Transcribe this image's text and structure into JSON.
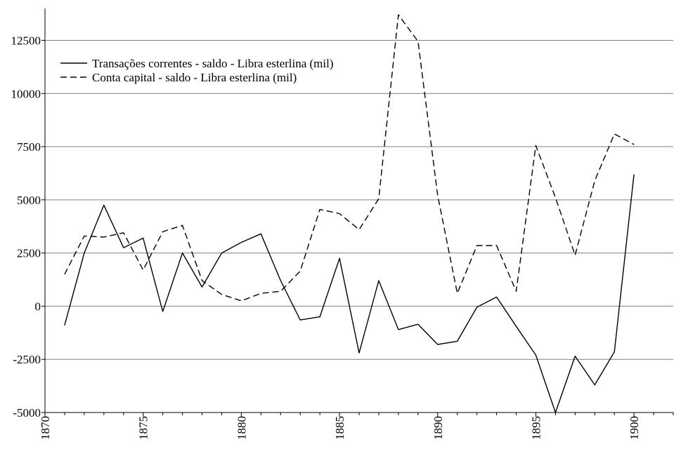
{
  "chart_data": {
    "type": "line",
    "title": "",
    "xlabel": "",
    "ylabel": "",
    "xlim": [
      1870,
      1902
    ],
    "ylim": [
      -5000,
      14000
    ],
    "x_ticks": [
      1870,
      1875,
      1880,
      1885,
      1890,
      1895,
      1900
    ],
    "y_ticks": [
      -5000,
      -2500,
      0,
      2500,
      5000,
      7500,
      10000,
      12500
    ],
    "grid": "horizontal",
    "legend_position": "top-left",
    "x": [
      1871,
      1872,
      1873,
      1874,
      1875,
      1876,
      1877,
      1878,
      1879,
      1880,
      1881,
      1882,
      1883,
      1884,
      1885,
      1886,
      1887,
      1888,
      1889,
      1890,
      1891,
      1892,
      1893,
      1894,
      1895,
      1896,
      1897,
      1898,
      1899,
      1900
    ],
    "series": [
      {
        "name": "Transações correntes - saldo - Libra esterlina (mil)",
        "style": "solid",
        "values": [
          -900,
          2500,
          4750,
          2750,
          3200,
          -250,
          2500,
          900,
          2500,
          3000,
          3400,
          1200,
          -650,
          -500,
          2250,
          -2200,
          1200,
          -1100,
          -850,
          -1800,
          -1650,
          -50,
          430,
          -950,
          -2300,
          -5000,
          -2350,
          -3700,
          -2150,
          6200
        ]
      },
      {
        "name": "Conta capital - saldo - Libra esterlina (mil)",
        "style": "dashed",
        "values": [
          1500,
          3300,
          3250,
          3450,
          1700,
          3500,
          3800,
          1200,
          550,
          250,
          600,
          700,
          1650,
          4550,
          4350,
          3600,
          5050,
          13700,
          12450,
          5200,
          600,
          2850,
          2850,
          700,
          7550,
          5100,
          2400,
          5900,
          8100,
          7600
        ]
      }
    ]
  }
}
